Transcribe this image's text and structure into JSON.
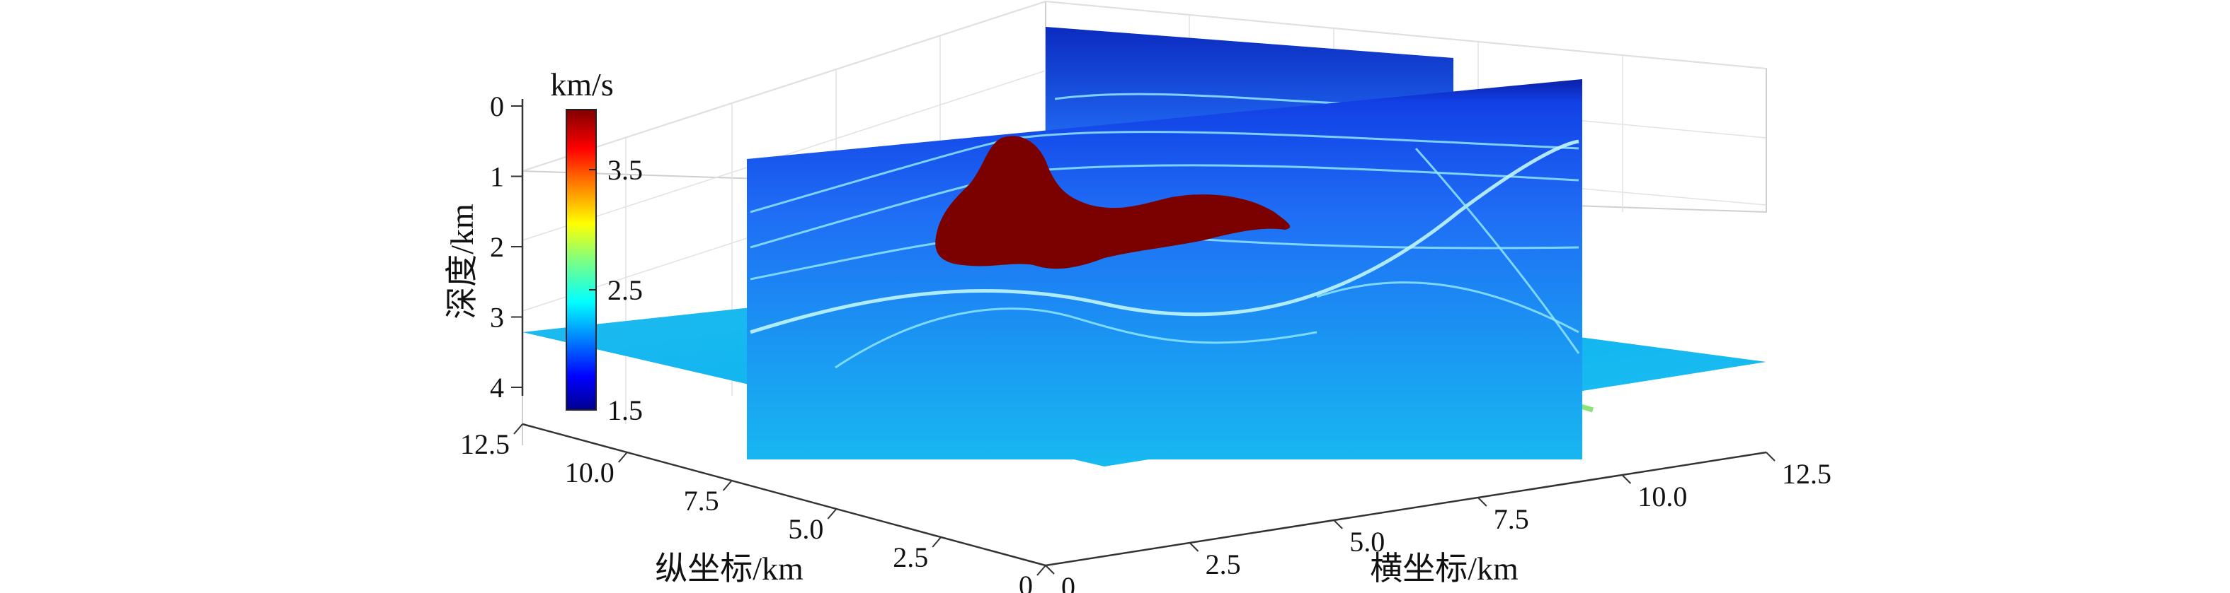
{
  "chart_data": {
    "type": "heatmap",
    "title": "",
    "xlabel": "横坐标/km",
    "ylabel": "纵坐标/km",
    "zlabel": "深度/km",
    "x_ticks": [
      "0",
      "2.5",
      "5.0",
      "7.5",
      "10.0",
      "12.5"
    ],
    "y_ticks": [
      "0",
      "2.5",
      "5.0",
      "7.5",
      "10.0",
      "12.5"
    ],
    "z_ticks": [
      "0",
      "1",
      "2",
      "3",
      "4"
    ],
    "xlim": [
      0,
      12.5
    ],
    "ylim": [
      0,
      12.5
    ],
    "zlim": [
      0,
      4.2
    ],
    "colorbar": {
      "unit": "km/s",
      "ticks": [
        "1.5",
        "2.5",
        "3.5"
      ],
      "range": [
        1.5,
        4.0
      ],
      "colors": [
        "#00008f",
        "#0000ff",
        "#0080ff",
        "#00ffff",
        "#80ff80",
        "#ffff00",
        "#ff8000",
        "#ff0000",
        "#800000"
      ]
    },
    "slices": [
      {
        "orientation": "x-z",
        "y": 6.3
      },
      {
        "orientation": "y-z",
        "x": 7.5
      },
      {
        "orientation": "x-y",
        "depth": 3.2
      }
    ],
    "salt_body_velocity": 4.0,
    "grid": true
  }
}
